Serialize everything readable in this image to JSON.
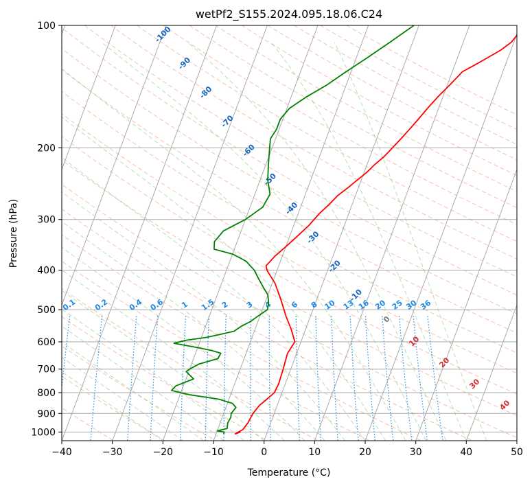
{
  "chart_data": {
    "type": "line",
    "title": "wetPf2_S155.2024.095.18.06.C24",
    "xlabel": "Temperature (°C)",
    "ylabel": "Pressure (hPa)",
    "xlim": [
      -40,
      50
    ],
    "ylim": [
      1050,
      100
    ],
    "y_scale": "log",
    "x_ticks": [
      -40,
      -30,
      -20,
      -10,
      0,
      10,
      20,
      30,
      40,
      50
    ],
    "y_ticks": [
      1000,
      900,
      800,
      700,
      600,
      500,
      400,
      300,
      200,
      100
    ],
    "grid": true,
    "skew": "skew-T log-P",
    "series": [
      {
        "name": "",
        "color": "#ff0000",
        "points": [
          [
            -5.3,
            1000
          ],
          [
            -6.2,
            1010
          ],
          [
            -5,
            985
          ],
          [
            -4.5,
            950
          ],
          [
            -4.2,
            900
          ],
          [
            -3.5,
            860
          ],
          [
            -2.5,
            830
          ],
          [
            -1.5,
            800
          ],
          [
            -1.3,
            760
          ],
          [
            -1.5,
            700
          ],
          [
            -1.8,
            640
          ],
          [
            -1.2,
            600
          ],
          [
            -2.8,
            560
          ],
          [
            -4.8,
            520
          ],
          [
            -7.2,
            470
          ],
          [
            -9.5,
            430
          ],
          [
            -12,
            400
          ],
          [
            -12.5,
            390
          ],
          [
            -11.5,
            370
          ],
          [
            -10,
            350
          ],
          [
            -8.5,
            330
          ],
          [
            -7,
            310
          ],
          [
            -5.8,
            290
          ],
          [
            -4.5,
            275
          ],
          [
            -3.5,
            262
          ],
          [
            -2,
            250
          ],
          [
            -0.8,
            240
          ],
          [
            0.5,
            230
          ],
          [
            1.5,
            220
          ],
          [
            2.8,
            210
          ],
          [
            3.8,
            200
          ],
          [
            4.8,
            190
          ],
          [
            5.8,
            180
          ],
          [
            6.8,
            170
          ],
          [
            7.8,
            160
          ],
          [
            9,
            150
          ],
          [
            10.5,
            140
          ],
          [
            12,
            130
          ],
          [
            14,
            125
          ],
          [
            16,
            120
          ],
          [
            18,
            115
          ],
          [
            19.5,
            110
          ],
          [
            20.2,
            105
          ],
          [
            20.8,
            100
          ]
        ]
      },
      {
        "name": "",
        "color": "#008000",
        "points": [
          [
            -8.5,
            1010
          ],
          [
            -8.5,
            1000
          ],
          [
            -10,
            993
          ],
          [
            -8.2,
            980
          ],
          [
            -8.5,
            950
          ],
          [
            -8.3,
            920
          ],
          [
            -8.5,
            900
          ],
          [
            -8,
            870
          ],
          [
            -9,
            850
          ],
          [
            -12,
            830
          ],
          [
            -18,
            810
          ],
          [
            -22,
            790
          ],
          [
            -21.5,
            770
          ],
          [
            -18.5,
            740
          ],
          [
            -20.5,
            710
          ],
          [
            -20,
            700
          ],
          [
            -18.5,
            680
          ],
          [
            -15.2,
            660
          ],
          [
            -15,
            640
          ],
          [
            -17,
            630
          ],
          [
            -20,
            620
          ],
          [
            -25,
            605
          ],
          [
            -23,
            595
          ],
          [
            -19,
            585
          ],
          [
            -16.5,
            575
          ],
          [
            -14,
            565
          ],
          [
            -13,
            550
          ],
          [
            -11.5,
            535
          ],
          [
            -10.5,
            520
          ],
          [
            -9,
            500
          ],
          [
            -9.3,
            480
          ],
          [
            -10,
            460
          ],
          [
            -11.5,
            440
          ],
          [
            -13,
            420
          ],
          [
            -14.5,
            400
          ],
          [
            -16.8,
            380
          ],
          [
            -20,
            365
          ],
          [
            -24,
            355
          ],
          [
            -24.5,
            340
          ],
          [
            -23.5,
            320
          ],
          [
            -20,
            300
          ],
          [
            -17.5,
            280
          ],
          [
            -17,
            260
          ],
          [
            -18.5,
            240
          ],
          [
            -19.5,
            220
          ],
          [
            -20.5,
            200
          ],
          [
            -21,
            190
          ],
          [
            -20.5,
            180
          ],
          [
            -20.5,
            170
          ],
          [
            -19.5,
            160
          ],
          [
            -17,
            150
          ],
          [
            -13.8,
            140
          ],
          [
            -11,
            130
          ],
          [
            -7.8,
            120
          ],
          [
            -4.5,
            110
          ],
          [
            -1,
            100
          ]
        ]
      }
    ],
    "mixing_ratio_labels": [
      "0.1",
      "0.2",
      "0.4",
      "0.6",
      "1",
      "1.5",
      "2",
      "3",
      "4",
      "6",
      "8",
      "10",
      "13",
      "16",
      "20",
      "25",
      "30",
      "36"
    ],
    "dry_adiabat_labels": [
      "-100",
      "-90",
      "-80",
      "-70",
      "-60",
      "-50",
      "-40",
      "-30",
      "-20",
      "-10",
      "0",
      "10",
      "20",
      "30",
      "40"
    ]
  }
}
